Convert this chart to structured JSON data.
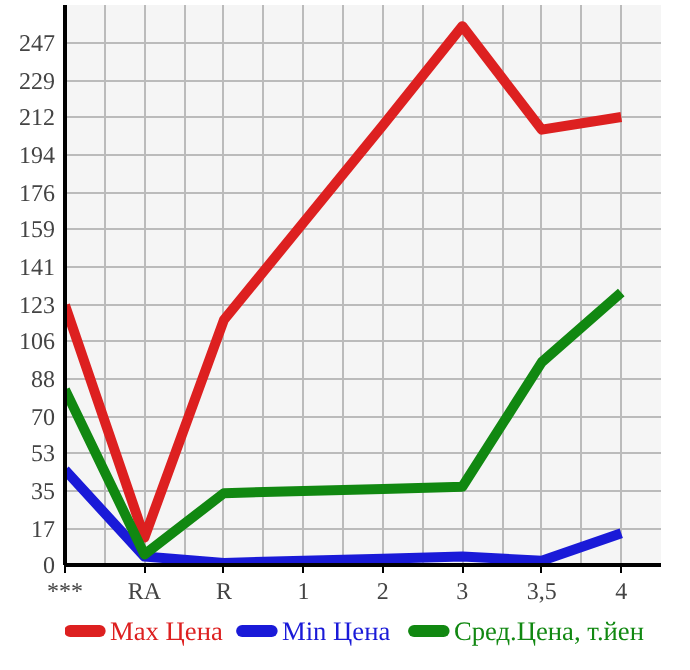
{
  "chart_data": {
    "type": "line",
    "categories": [
      "***",
      "RA",
      "R",
      "1",
      "2",
      "3",
      "3,5",
      "4"
    ],
    "series": [
      {
        "name": "Max Цена",
        "color": "#dd2020",
        "values": [
          123,
          13,
          116,
          162,
          208,
          255,
          206,
          212
        ]
      },
      {
        "name": "Min Цена",
        "color": "#1a1ad8",
        "values": [
          45,
          4,
          1,
          2,
          3,
          4,
          2,
          15
        ]
      },
      {
        "name": "Сред.Цена, т.йен",
        "color": "#118811",
        "values": [
          83,
          5,
          34,
          35,
          36,
          37,
          96,
          129
        ]
      }
    ],
    "ylim": [
      0,
      265
    ],
    "yticks": [
      0,
      17,
      35,
      53,
      70,
      88,
      106,
      123,
      141,
      159,
      176,
      194,
      212,
      229,
      247
    ],
    "grid": true,
    "legend": "bottom",
    "marker": "none",
    "line_style": "solid"
  }
}
